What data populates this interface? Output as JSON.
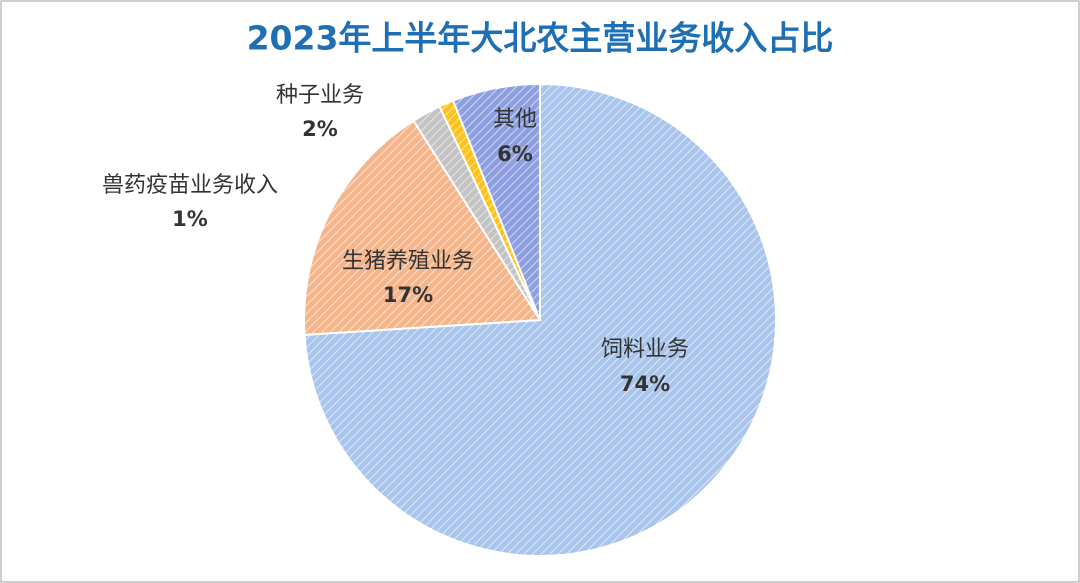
{
  "chart_data": {
    "type": "pie",
    "title": "2023年上半年大北农主营业务收入占比",
    "categories": [
      "饲料业务",
      "生猪养殖业务",
      "种子业务",
      "兽药疫苗业务收入",
      "其他"
    ],
    "values": [
      74,
      17,
      2,
      1,
      6
    ],
    "value_labels": [
      "74%",
      "17%",
      "2%",
      "1%",
      "6%"
    ],
    "colors": [
      "#a9c5ec",
      "#f5b58a",
      "#c3c3c3",
      "#ffc21a",
      "#8d9fe0"
    ]
  }
}
